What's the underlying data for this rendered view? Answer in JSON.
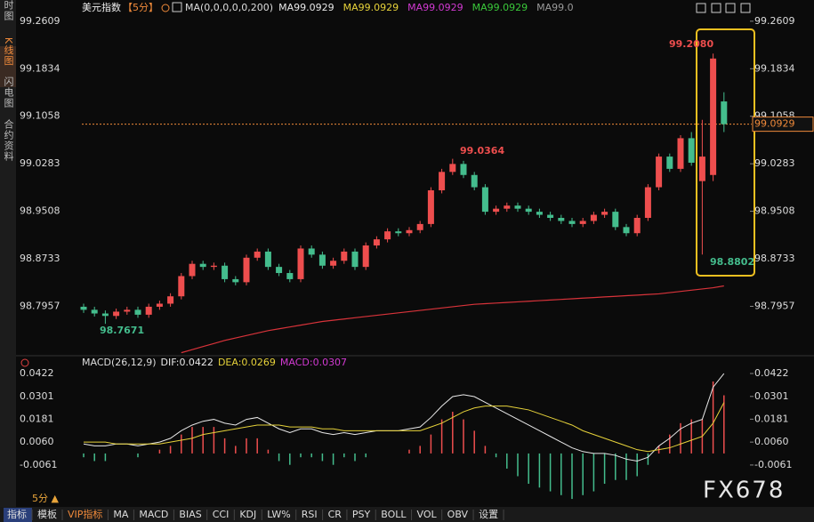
{
  "sidebar": [
    "分时图",
    "K线图",
    "闪电图",
    "合约资料"
  ],
  "chart_data": [
    {
      "type": "candlestick",
      "title": "美元指数",
      "period": "【5分】",
      "ma_setting": "MA(0,0,0,0,0,200)",
      "ma_labels": [
        {
          "text": "MA99.0929",
          "color": "#e8e8e8"
        },
        {
          "text": "MA99.0929",
          "color": "#e6d23a"
        },
        {
          "text": "MA99.0929",
          "color": "#d23ad2"
        },
        {
          "text": "MA99.0929",
          "color": "#3ac83a"
        },
        {
          "text": "MA99.0",
          "color": "#9a9a9a"
        }
      ],
      "up_color": "#ee4e4e",
      "down_color": "#44bd8d",
      "open": [
        98.795,
        98.79,
        98.784,
        98.78,
        98.787,
        98.79,
        98.782,
        98.795,
        98.8,
        98.812,
        98.845,
        98.865,
        98.86,
        98.862,
        98.84,
        98.835,
        98.875,
        98.885,
        98.86,
        98.85,
        98.84,
        98.89,
        98.88,
        98.862,
        98.87,
        98.885,
        98.86,
        98.895,
        98.905,
        98.918,
        98.915,
        98.92,
        98.93,
        98.985,
        99.015,
        99.028,
        99.01,
        98.99,
        98.95,
        98.955,
        98.96,
        98.955,
        98.95,
        98.945,
        98.94,
        98.935,
        98.93,
        98.935,
        98.945,
        98.95,
        98.925,
        98.915,
        98.94,
        98.99,
        99.04,
        99.02,
        99.07,
        99.0,
        99.01,
        99.13
      ],
      "high": [
        98.8,
        98.795,
        98.789,
        98.792,
        98.795,
        98.795,
        98.8,
        98.805,
        98.817,
        98.85,
        98.87,
        98.87,
        98.867,
        98.867,
        98.845,
        98.88,
        98.89,
        98.89,
        98.865,
        98.855,
        98.895,
        98.895,
        98.885,
        98.875,
        98.89,
        98.89,
        98.9,
        98.91,
        98.923,
        98.923,
        98.925,
        98.935,
        98.99,
        99.02,
        99.0364,
        99.033,
        99.015,
        98.995,
        98.96,
        98.965,
        98.965,
        98.96,
        98.955,
        98.95,
        98.945,
        98.94,
        98.94,
        98.95,
        98.955,
        98.955,
        98.93,
        98.945,
        98.995,
        99.045,
        99.045,
        99.075,
        99.08,
        99.1,
        99.208,
        99.145
      ],
      "low": [
        98.785,
        98.779,
        98.7671,
        98.775,
        98.782,
        98.777,
        98.777,
        98.79,
        98.795,
        98.807,
        98.84,
        98.855,
        98.855,
        98.835,
        98.83,
        98.83,
        98.87,
        98.855,
        98.845,
        98.835,
        98.835,
        98.875,
        98.857,
        98.857,
        98.865,
        98.855,
        98.855,
        98.89,
        98.9,
        98.91,
        98.91,
        98.915,
        98.925,
        98.98,
        99.01,
        99.005,
        98.985,
        98.945,
        98.945,
        98.95,
        98.95,
        98.945,
        98.94,
        98.935,
        98.93,
        98.925,
        98.925,
        98.93,
        98.94,
        98.92,
        98.91,
        98.91,
        98.935,
        98.985,
        99.015,
        99.015,
        99.025,
        98.8802,
        99.0,
        99.08
      ],
      "close": [
        98.79,
        98.784,
        98.78,
        98.787,
        98.79,
        98.782,
        98.795,
        98.8,
        98.812,
        98.845,
        98.865,
        98.86,
        98.862,
        98.84,
        98.835,
        98.875,
        98.885,
        98.86,
        98.85,
        98.84,
        98.89,
        98.88,
        98.862,
        98.87,
        98.885,
        98.86,
        98.895,
        98.905,
        98.918,
        98.915,
        98.92,
        98.93,
        98.985,
        99.015,
        99.028,
        99.01,
        98.99,
        98.95,
        98.955,
        98.96,
        98.955,
        98.95,
        98.945,
        98.94,
        98.935,
        98.93,
        98.935,
        98.945,
        98.95,
        98.925,
        98.915,
        98.94,
        98.99,
        99.04,
        99.02,
        99.07,
        99.03,
        99.04,
        99.2,
        99.0929
      ],
      "ma_line": {
        "color": "#d8333a",
        "values": [
          null,
          null,
          null,
          null,
          null,
          null,
          null,
          null,
          null,
          98.72,
          98.725,
          98.73,
          98.735,
          98.74,
          98.744,
          98.748,
          98.752,
          98.756,
          98.759,
          98.762,
          98.765,
          98.768,
          98.771,
          98.773,
          98.775,
          98.777,
          98.779,
          98.781,
          98.783,
          98.785,
          98.787,
          98.789,
          98.791,
          98.793,
          98.795,
          98.797,
          98.799,
          98.8,
          98.801,
          98.802,
          98.803,
          98.804,
          98.805,
          98.806,
          98.807,
          98.808,
          98.809,
          98.81,
          98.811,
          98.812,
          98.813,
          98.814,
          98.815,
          98.816,
          98.818,
          98.82,
          98.822,
          98.824,
          98.826,
          98.829
        ]
      },
      "annotations": [
        {
          "text": "99.2080",
          "color": "#ee4e4e"
        },
        {
          "text": "99.0364",
          "color": "#ee4e4e"
        },
        {
          "text": "98.7671",
          "color": "#44bd8d"
        },
        {
          "text": "98.8802",
          "color": "#44bd8d"
        }
      ],
      "last_price": 99.0929,
      "ylim": [
        98.718,
        99.281
      ],
      "yticks": [
        99.2609,
        99.1834,
        99.1058,
        99.0283,
        98.9508,
        98.8733,
        98.7957
      ]
    },
    {
      "type": "macd",
      "title": "MACD(26,12,9)",
      "legend": [
        {
          "text": "DIF:0.0422",
          "color": "#e8e8e8"
        },
        {
          "text": "DEA:0.0269",
          "color": "#e6d23a"
        },
        {
          "text": "MACD:0.0307",
          "color": "#d23ad2"
        }
      ],
      "series": [
        {
          "color": "#e8e8e8",
          "values": [
            0.005,
            0.004,
            0.004,
            0.005,
            0.005,
            0.004,
            0.005,
            0.006,
            0.008,
            0.012,
            0.015,
            0.017,
            0.018,
            0.016,
            0.015,
            0.018,
            0.019,
            0.016,
            0.013,
            0.011,
            0.013,
            0.013,
            0.011,
            0.01,
            0.011,
            0.01,
            0.011,
            0.012,
            0.012,
            0.012,
            0.013,
            0.014,
            0.019,
            0.025,
            0.03,
            0.031,
            0.03,
            0.027,
            0.024,
            0.021,
            0.018,
            0.015,
            0.012,
            0.009,
            0.006,
            0.003,
            0.001,
            0.0,
            0.0,
            -0.001,
            -0.003,
            -0.004,
            -0.002,
            0.004,
            0.008,
            0.013,
            0.016,
            0.018,
            0.035,
            0.0422
          ]
        },
        {
          "color": "#e6d23a",
          "values": [
            0.006,
            0.006,
            0.006,
            0.005,
            0.005,
            0.005,
            0.005,
            0.005,
            0.006,
            0.007,
            0.008,
            0.01,
            0.011,
            0.012,
            0.013,
            0.014,
            0.015,
            0.015,
            0.015,
            0.014,
            0.014,
            0.014,
            0.013,
            0.013,
            0.012,
            0.012,
            0.012,
            0.012,
            0.012,
            0.012,
            0.012,
            0.012,
            0.014,
            0.016,
            0.019,
            0.022,
            0.024,
            0.025,
            0.025,
            0.025,
            0.024,
            0.023,
            0.021,
            0.019,
            0.017,
            0.015,
            0.012,
            0.01,
            0.008,
            0.006,
            0.004,
            0.002,
            0.001,
            0.002,
            0.003,
            0.005,
            0.007,
            0.009,
            0.016,
            0.0269
          ]
        }
      ],
      "histogram": [
        -0.002,
        -0.004,
        -0.004,
        0,
        0,
        -0.002,
        0,
        0.002,
        0.004,
        0.01,
        0.014,
        0.014,
        0.014,
        0.008,
        0.004,
        0.008,
        0.008,
        0.002,
        -0.004,
        -0.006,
        -0.002,
        -0.002,
        -0.004,
        -0.006,
        -0.002,
        -0.004,
        -0.002,
        0,
        0,
        0,
        0.002,
        0.004,
        0.01,
        0.018,
        0.022,
        0.018,
        0.012,
        0.004,
        -0.002,
        -0.008,
        -0.012,
        -0.016,
        -0.018,
        -0.02,
        -0.022,
        -0.024,
        -0.022,
        -0.02,
        -0.016,
        -0.014,
        -0.014,
        -0.012,
        -0.006,
        0.004,
        0.01,
        0.016,
        0.018,
        0.018,
        0.038,
        0.0307
      ],
      "ylim": [
        -0.0235,
        0.0469
      ],
      "yticks": [
        0.0422,
        0.0301,
        0.0181,
        {
          "value": 0.006,
          "label": "0.0060"
        },
        -0.0061
      ]
    }
  ],
  "period_selector": "5分 ▲",
  "tabs": [
    "指标",
    "模板",
    "VIP指标",
    "MA",
    "MACD",
    "BIAS",
    "CCI",
    "KDJ",
    "LW%",
    "RSI",
    "CR",
    "PSY",
    "BOLL",
    "VOL",
    "OBV",
    "设置"
  ],
  "watermark": "FX678"
}
